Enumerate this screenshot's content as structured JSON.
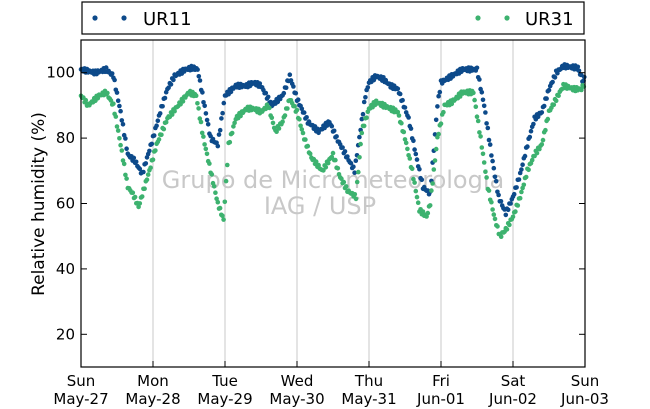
{
  "chart_data": {
    "type": "scatter",
    "ylabel": "Relative humidity (%)",
    "xlabel": "",
    "ylim": [
      10,
      110
    ],
    "xlim": [
      0,
      7
    ],
    "yticks": [
      20,
      40,
      60,
      80,
      100
    ],
    "xticks": [
      {
        "day": "Sun",
        "date": "May-27"
      },
      {
        "day": "Mon",
        "date": "May-28"
      },
      {
        "day": "Tue",
        "date": "May-29"
      },
      {
        "day": "Wed",
        "date": "May-30"
      },
      {
        "day": "Thu",
        "date": "May-31"
      },
      {
        "day": "Fri",
        "date": "Jun-01"
      },
      {
        "day": "Sat",
        "date": "Jun-02"
      },
      {
        "day": "Sun",
        "date": "Jun-03"
      }
    ],
    "grid": "vertical",
    "legend_position": "top",
    "watermark": [
      "Grupo de Micrometeorologia",
      "IAG / USP"
    ],
    "series": [
      {
        "name": "UR11",
        "color": "#0d4a8a",
        "points": [
          [
            0.0,
            101
          ],
          [
            0.2,
            100
          ],
          [
            0.35,
            101
          ],
          [
            0.45,
            99
          ],
          [
            0.55,
            88
          ],
          [
            0.65,
            75
          ],
          [
            0.75,
            73
          ],
          [
            0.85,
            69
          ],
          [
            1.0,
            80
          ],
          [
            1.1,
            88
          ],
          [
            1.2,
            95
          ],
          [
            1.3,
            99
          ],
          [
            1.45,
            101
          ],
          [
            1.55,
            101.5
          ],
          [
            1.62,
            101
          ],
          [
            1.8,
            80
          ],
          [
            1.9,
            78
          ],
          [
            2.0,
            93
          ],
          [
            2.15,
            96
          ],
          [
            2.3,
            96
          ],
          [
            2.4,
            97
          ],
          [
            2.5,
            96
          ],
          [
            2.65,
            90
          ],
          [
            2.8,
            93
          ],
          [
            2.9,
            99
          ],
          [
            3.0,
            92
          ],
          [
            3.15,
            85
          ],
          [
            3.3,
            82
          ],
          [
            3.45,
            85
          ],
          [
            3.55,
            80
          ],
          [
            3.7,
            74
          ],
          [
            3.8,
            70
          ],
          [
            3.95,
            93
          ],
          [
            4.0,
            97
          ],
          [
            4.1,
            99
          ],
          [
            4.2,
            98
          ],
          [
            4.3,
            96
          ],
          [
            4.4,
            95
          ],
          [
            4.55,
            86
          ],
          [
            4.65,
            75
          ],
          [
            4.75,
            65
          ],
          [
            4.85,
            63
          ],
          [
            4.95,
            90
          ],
          [
            5.0,
            97
          ],
          [
            5.15,
            99
          ],
          [
            5.3,
            101
          ],
          [
            5.5,
            101
          ],
          [
            5.6,
            90
          ],
          [
            5.7,
            75
          ],
          [
            5.8,
            62
          ],
          [
            5.9,
            57
          ],
          [
            6.0,
            62
          ],
          [
            6.1,
            69
          ],
          [
            6.2,
            78
          ],
          [
            6.3,
            86
          ],
          [
            6.4,
            88
          ],
          [
            6.5,
            95
          ],
          [
            6.6,
            100
          ],
          [
            6.7,
            102
          ],
          [
            6.9,
            101.5
          ],
          [
            6.98,
            97
          ],
          [
            7.0,
            100
          ]
        ]
      },
      {
        "name": "UR31",
        "color": "#3db26f",
        "points": [
          [
            0.0,
            93
          ],
          [
            0.1,
            90
          ],
          [
            0.25,
            93
          ],
          [
            0.35,
            94
          ],
          [
            0.45,
            90
          ],
          [
            0.55,
            78
          ],
          [
            0.65,
            65
          ],
          [
            0.72,
            63
          ],
          [
            0.8,
            59
          ],
          [
            0.95,
            70
          ],
          [
            1.05,
            78
          ],
          [
            1.2,
            86
          ],
          [
            1.35,
            90
          ],
          [
            1.5,
            94
          ],
          [
            1.6,
            93
          ],
          [
            1.7,
            80
          ],
          [
            1.8,
            70
          ],
          [
            1.9,
            60
          ],
          [
            1.98,
            55
          ],
          [
            2.05,
            78
          ],
          [
            2.15,
            86
          ],
          [
            2.3,
            89
          ],
          [
            2.4,
            89
          ],
          [
            2.5,
            88
          ],
          [
            2.6,
            90
          ],
          [
            2.7,
            82
          ],
          [
            2.8,
            85
          ],
          [
            2.9,
            92
          ],
          [
            3.0,
            88
          ],
          [
            3.1,
            80
          ],
          [
            3.2,
            74
          ],
          [
            3.35,
            70
          ],
          [
            3.5,
            75
          ],
          [
            3.6,
            68
          ],
          [
            3.7,
            64
          ],
          [
            3.82,
            62
          ],
          [
            3.9,
            82
          ],
          [
            4.0,
            89
          ],
          [
            4.1,
            91
          ],
          [
            4.2,
            90
          ],
          [
            4.3,
            89
          ],
          [
            4.4,
            88
          ],
          [
            4.5,
            80
          ],
          [
            4.6,
            70
          ],
          [
            4.7,
            58
          ],
          [
            4.8,
            56
          ],
          [
            4.85,
            60
          ],
          [
            4.95,
            80
          ],
          [
            5.05,
            90
          ],
          [
            5.15,
            91
          ],
          [
            5.3,
            94
          ],
          [
            5.45,
            94
          ],
          [
            5.55,
            80
          ],
          [
            5.65,
            65
          ],
          [
            5.75,
            55
          ],
          [
            5.82,
            50
          ],
          [
            5.9,
            52
          ],
          [
            6.0,
            56
          ],
          [
            6.1,
            62
          ],
          [
            6.2,
            70
          ],
          [
            6.3,
            75
          ],
          [
            6.4,
            78
          ],
          [
            6.5,
            88
          ],
          [
            6.6,
            92
          ],
          [
            6.7,
            96
          ],
          [
            6.85,
            95
          ],
          [
            6.95,
            95
          ],
          [
            7.0,
            97
          ]
        ]
      }
    ]
  }
}
